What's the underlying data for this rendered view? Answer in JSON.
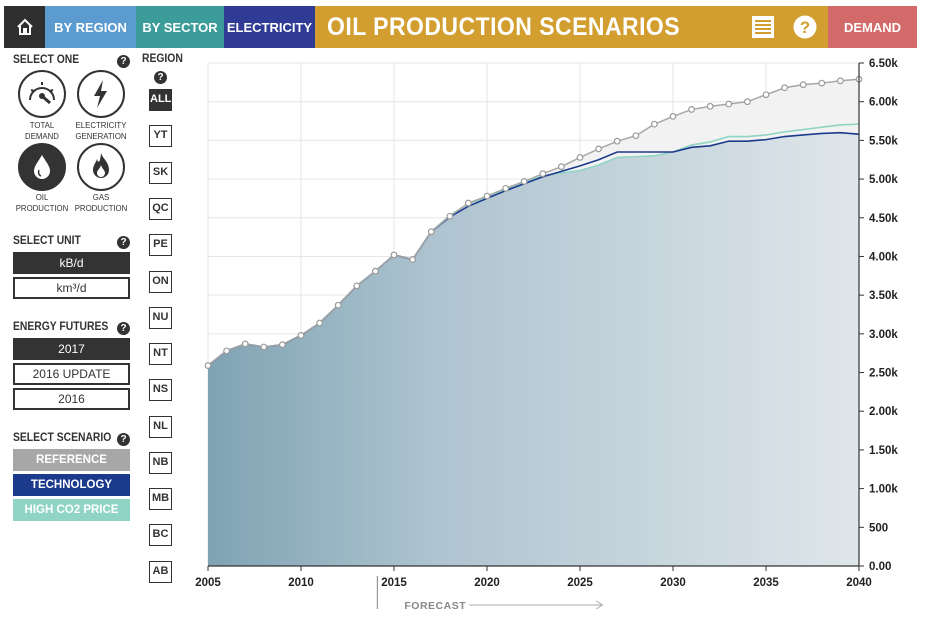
{
  "nav": {
    "home_icon": "home-icon",
    "by_region": "BY REGION",
    "by_sector": "BY SECTOR",
    "electricity": "ELECTRICITY",
    "title": "OIL PRODUCTION SCENARIOS",
    "list_icon": "list-icon",
    "help_icon": "help-icon",
    "demand": "DEMAND",
    "colors": {
      "home": "#2f2f2f",
      "region": "#5b9bd0",
      "sector": "#3c9c99",
      "electricity": "#2f3b94",
      "title": "#d29e2f",
      "demand": "#d26a6a"
    }
  },
  "select_one": {
    "label": "SELECT ONE",
    "items": [
      {
        "label_1": "TOTAL",
        "label_2": "DEMAND",
        "icon": "gauge-icon",
        "selected": false
      },
      {
        "label_1": "ELECTRICITY",
        "label_2": "GENERATION",
        "icon": "lightning-icon",
        "selected": false
      },
      {
        "label_1": "OIL",
        "label_2": "PRODUCTION",
        "icon": "oil-drop-icon",
        "selected": true
      },
      {
        "label_1": "GAS",
        "label_2": "PRODUCTION",
        "icon": "flame-icon",
        "selected": false
      }
    ]
  },
  "select_unit": {
    "label": "SELECT UNIT",
    "options": [
      {
        "label": "kB/d",
        "selected": true
      },
      {
        "label": "km³/d",
        "selected": false
      }
    ]
  },
  "energy_futures": {
    "label": "ENERGY FUTURES",
    "options": [
      {
        "label": "2017",
        "selected": true
      },
      {
        "label": "2016 UPDATE",
        "selected": false
      },
      {
        "label": "2016",
        "selected": false
      }
    ]
  },
  "select_scenario": {
    "label": "SELECT SCENARIO",
    "options": [
      {
        "label": "REFERENCE",
        "color": "#a7a7a7"
      },
      {
        "label": "TECHNOLOGY",
        "color": "#1c3a8c"
      },
      {
        "label": "HIGH CO2 PRICE",
        "color": "#8fd4c4"
      }
    ]
  },
  "region": {
    "label": "REGION",
    "items": [
      {
        "label": "ALL",
        "selected": true
      },
      {
        "label": "YT",
        "selected": false
      },
      {
        "label": "SK",
        "selected": false
      },
      {
        "label": "QC",
        "selected": false
      },
      {
        "label": "PE",
        "selected": false
      },
      {
        "label": "ON",
        "selected": false
      },
      {
        "label": "NU",
        "selected": false
      },
      {
        "label": "NT",
        "selected": false
      },
      {
        "label": "NS",
        "selected": false
      },
      {
        "label": "NL",
        "selected": false
      },
      {
        "label": "NB",
        "selected": false
      },
      {
        "label": "MB",
        "selected": false
      },
      {
        "label": "BC",
        "selected": false
      },
      {
        "label": "AB",
        "selected": false
      }
    ]
  },
  "chart_data": {
    "type": "area",
    "title": "",
    "xlabel": "",
    "ylabel": "",
    "xlim": [
      2005,
      2040
    ],
    "ylim": [
      0,
      6500
    ],
    "x_ticks": [
      "2005",
      "2010",
      "2015",
      "2020",
      "2025",
      "2030",
      "2035",
      "2040"
    ],
    "y_ticks": [
      "0.00",
      "500",
      "1.00k",
      "1.50k",
      "2.00k",
      "2.50k",
      "3.00k",
      "3.50k",
      "4.00k",
      "4.50k",
      "5.00k",
      "5.50k",
      "6.00k",
      "6.50k"
    ],
    "forecast_label": "FORECAST",
    "forecast_start": 2014,
    "grid": true,
    "x": [
      2005,
      2006,
      2007,
      2008,
      2009,
      2010,
      2011,
      2012,
      2013,
      2014,
      2015,
      2016,
      2017,
      2018,
      2019,
      2020,
      2021,
      2022,
      2023,
      2024,
      2025,
      2026,
      2027,
      2028,
      2029,
      2030,
      2031,
      2032,
      2033,
      2034,
      2035,
      2036,
      2037,
      2038,
      2039,
      2040
    ],
    "series": [
      {
        "name": "REFERENCE",
        "color": "#a7a7a7",
        "values": [
          2590,
          2780,
          2870,
          2830,
          2860,
          2980,
          3140,
          3370,
          3620,
          3810,
          4020,
          3960,
          4320,
          4520,
          4690,
          4780,
          4880,
          4970,
          5070,
          5160,
          5280,
          5390,
          5490,
          5560,
          5710,
          5810,
          5900,
          5940,
          5970,
          6000,
          6090,
          6180,
          6220,
          6240,
          6270,
          6290
        ]
      },
      {
        "name": "TECHNOLOGY",
        "color": "#1c3a8c",
        "values": [
          2590,
          2780,
          2870,
          2830,
          2860,
          2980,
          3140,
          3370,
          3620,
          3810,
          4020,
          3960,
          4320,
          4510,
          4650,
          4750,
          4850,
          4940,
          5030,
          5100,
          5170,
          5250,
          5350,
          5350,
          5350,
          5350,
          5410,
          5430,
          5490,
          5490,
          5510,
          5550,
          5570,
          5590,
          5600,
          5580
        ]
      },
      {
        "name": "HIGH CO2 PRICE",
        "color": "#8fd4c4",
        "values": [
          2590,
          2780,
          2870,
          2830,
          2860,
          2980,
          3140,
          3370,
          3620,
          3810,
          4020,
          3960,
          4320,
          4530,
          4680,
          4770,
          4870,
          4960,
          5040,
          5080,
          5110,
          5180,
          5280,
          5290,
          5300,
          5350,
          5440,
          5480,
          5550,
          5550,
          5570,
          5610,
          5640,
          5670,
          5700,
          5710
        ]
      }
    ]
  }
}
